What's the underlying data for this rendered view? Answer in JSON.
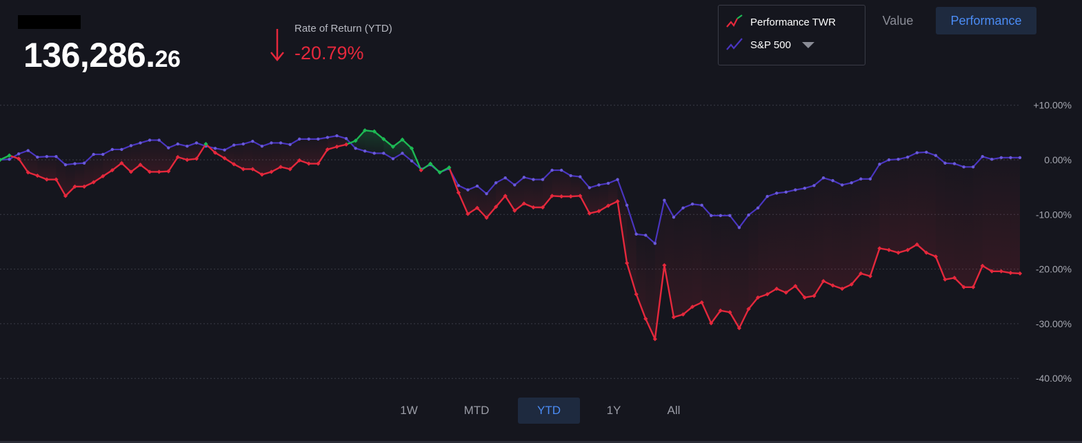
{
  "header": {
    "balance_main": "136,286.",
    "balance_cents": "26",
    "ror_label": "Rate of Return (YTD)",
    "ror_value": "-20.79%"
  },
  "legend": {
    "items": [
      {
        "label": "Performance TWR",
        "icon": "trend-line-icon"
      },
      {
        "label": "S&P 500",
        "icon": "trend-line-icon"
      }
    ]
  },
  "view_toggle": {
    "value_label": "Value",
    "performance_label": "Performance",
    "active": "Performance"
  },
  "ranges": {
    "items": [
      "1W",
      "MTD",
      "YTD",
      "1Y",
      "All"
    ],
    "active": "YTD"
  },
  "colors": {
    "background": "#15161e",
    "portfolio_negative": "#e5283c",
    "portfolio_positive": "#1db954",
    "benchmark": "#4a35c0",
    "accent": "#4b8cf5"
  },
  "chart_data": {
    "type": "line",
    "ylim": [
      -40,
      10
    ],
    "yticks": [
      "+10.00%",
      "0.00%",
      "-10.00%",
      "-20.00%",
      "-30.00%",
      "-40.00%"
    ],
    "ytick_values": [
      10,
      0,
      -10,
      -20,
      -30,
      -40
    ],
    "grid": true,
    "legend_position": "top-right",
    "series": [
      {
        "name": "Performance TWR",
        "values": [
          0,
          0.8,
          0.2,
          -2.3,
          -2.9,
          -3.6,
          -3.6,
          -6.6,
          -4.9,
          -4.9,
          -4.1,
          -3,
          -1.9,
          -0.6,
          -2.2,
          -0.9,
          -2.2,
          -2.2,
          -2.1,
          0.5,
          0,
          0.2,
          2.9,
          1.3,
          0.3,
          -0.8,
          -1.7,
          -1.7,
          -2.7,
          -2.2,
          -1.3,
          -1.7,
          -0.1,
          -0.7,
          -0.7,
          1.9,
          2.4,
          2.8,
          3.5,
          5.4,
          5.2,
          3.8,
          2.4,
          3.7,
          2.1,
          -1.9,
          -0.7,
          -2.3,
          -1.4,
          -6,
          -9.9,
          -8.8,
          -10.6,
          -8.6,
          -6.6,
          -9.3,
          -8,
          -8.7,
          -8.7,
          -6.6,
          -6.7,
          -6.7,
          -6.6,
          -9.8,
          -9.4,
          -8.4,
          -7.6,
          -18.9,
          -24.6,
          -29.1,
          -32.8,
          -19.3,
          -28.8,
          -28.3,
          -26.9,
          -26.1,
          -29.9,
          -27.6,
          -27.9,
          -30.8,
          -27.3,
          -25.2,
          -24.6,
          -23.6,
          -24.3,
          -23.1,
          -25.2,
          -24.9,
          -22.2,
          -23,
          -23.6,
          -22.8,
          -20.8,
          -21.3,
          -16.2,
          -16.5,
          -17,
          -16.5,
          -15.5,
          -17,
          -17.7,
          -21.9,
          -21.6,
          -23.3,
          -23.3,
          -19.4,
          -20.4,
          -20.4,
          -20.7,
          -20.8
        ]
      },
      {
        "name": "S&P 500",
        "values": [
          0,
          0.1,
          1.1,
          1.7,
          0.5,
          0.6,
          0.6,
          -0.9,
          -0.7,
          -0.6,
          1,
          1,
          1.9,
          1.9,
          2.6,
          3.1,
          3.6,
          3.6,
          2.2,
          2.9,
          2.5,
          3.1,
          2.5,
          2.1,
          1.8,
          2.7,
          2.9,
          3.4,
          2.5,
          3.1,
          3.1,
          2.8,
          3.8,
          3.8,
          3.8,
          4.1,
          4.4,
          3.9,
          2.1,
          1.6,
          1.2,
          1.2,
          0.2,
          1.2,
          -0.2,
          -1.7,
          -0.9,
          -2.3,
          -1.6,
          -4.7,
          -5.5,
          -4.8,
          -6.2,
          -4.2,
          -3.3,
          -4.6,
          -3.2,
          -3.6,
          -3.6,
          -1.9,
          -1.9,
          -2.9,
          -3.1,
          -5.1,
          -4.6,
          -4.3,
          -3.6,
          -8.3,
          -13.6,
          -13.8,
          -15.3,
          -7.4,
          -10.5,
          -8.8,
          -8.1,
          -8.3,
          -10.2,
          -10.2,
          -10.2,
          -12.4,
          -10.1,
          -8.8,
          -6.7,
          -6.1,
          -5.9,
          -5.5,
          -5.2,
          -4.7,
          -3.3,
          -3.8,
          -4.6,
          -4.2,
          -3.5,
          -3.5,
          -0.8,
          0,
          0.1,
          0.5,
          1.3,
          1.4,
          0.8,
          -0.6,
          -0.7,
          -1.3,
          -1.3,
          0.6,
          0.1,
          0.4,
          0.4,
          0.4
        ]
      }
    ]
  }
}
